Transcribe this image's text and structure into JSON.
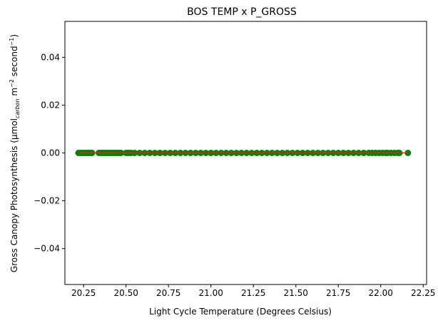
{
  "chart_data": {
    "type": "scatter",
    "title": "BOS TEMP x P_GROSS",
    "xlabel": "Light Cycle Temperature (Degrees Celsius)",
    "ylabel": {
      "prefix": "Gross Canopy Photosynthesis (μmol",
      "subscript": "carbon",
      "middle": " m",
      "sup1": "−2",
      "middle2": " second",
      "sup2": "−1",
      "suffix": ")"
    },
    "xlim": [
      20.14,
      22.27
    ],
    "ylim": [
      -0.055,
      0.055
    ],
    "xticks": [
      20.25,
      20.5,
      20.75,
      21.0,
      21.25,
      21.5,
      21.75,
      22.0,
      22.25
    ],
    "xtick_labels": [
      "20.25",
      "20.50",
      "20.75",
      "21.00",
      "21.25",
      "21.50",
      "21.75",
      "22.00",
      "22.25"
    ],
    "yticks": [
      0.04,
      0.02,
      0.0,
      -0.02,
      -0.04
    ],
    "ytick_labels": [
      "0.04",
      "0.02",
      "0.00",
      "−0.02",
      "−0.04"
    ],
    "grid": false,
    "series": [
      {
        "color": "#008000",
        "marker": "circle",
        "x": [
          20.22,
          20.23,
          20.24,
          20.25,
          20.26,
          20.27,
          20.28,
          20.29,
          20.3,
          20.34,
          20.35,
          20.36,
          20.37,
          20.38,
          20.39,
          20.4,
          20.41,
          20.42,
          20.43,
          20.44,
          20.45,
          20.46,
          20.47,
          20.5,
          20.51,
          20.52,
          20.53,
          20.55,
          20.58,
          20.61,
          20.64,
          20.67,
          20.7,
          20.73,
          20.76,
          20.79,
          20.82,
          20.85,
          20.88,
          20.91,
          20.94,
          20.97,
          21.0,
          21.03,
          21.06,
          21.09,
          21.12,
          21.15,
          21.18,
          21.21,
          21.24,
          21.27,
          21.3,
          21.33,
          21.36,
          21.39,
          21.42,
          21.45,
          21.48,
          21.51,
          21.54,
          21.57,
          21.6,
          21.63,
          21.66,
          21.69,
          21.72,
          21.75,
          21.78,
          21.81,
          21.84,
          21.87,
          21.9,
          21.93,
          21.95,
          21.97,
          21.99,
          22.01,
          22.03,
          22.04,
          22.06,
          22.08,
          22.1,
          22.11,
          22.16
        ],
        "y": [
          0,
          0,
          0,
          0,
          0,
          0,
          0,
          0,
          0,
          0,
          0,
          0,
          0,
          0,
          0,
          0,
          0,
          0,
          0,
          0,
          0,
          0,
          0,
          0,
          0,
          0,
          0,
          0,
          0,
          0,
          0,
          0,
          0,
          0,
          0,
          0,
          0,
          0,
          0,
          0,
          0,
          0,
          0,
          0,
          0,
          0,
          0,
          0,
          0,
          0,
          0,
          0,
          0,
          0,
          0,
          0,
          0,
          0,
          0,
          0,
          0,
          0,
          0,
          0,
          0,
          0,
          0,
          0,
          0,
          0,
          0,
          0,
          0,
          0,
          0,
          0,
          0,
          0,
          0,
          0,
          0,
          0,
          0,
          0,
          0
        ]
      }
    ],
    "fit_line": {
      "color": "#d62728",
      "x": [
        20.22,
        22.16
      ],
      "y": [
        0,
        0
      ]
    }
  }
}
